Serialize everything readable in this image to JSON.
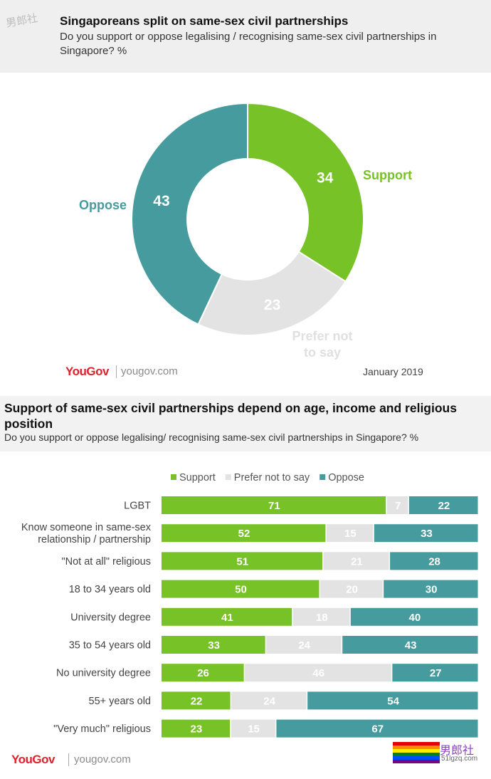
{
  "header1": {
    "watermark": "男郎社",
    "title": "Singaporeans split on same-sex civil partnerships",
    "subtitle": "Do you support or oppose legalising / recognising same-sex civil partnerships in Singapore? %"
  },
  "chart_data": [
    {
      "type": "pie",
      "variant": "donut",
      "slices": [
        {
          "label": "Support",
          "value": 34,
          "color": "#77c226"
        },
        {
          "label": "Prefer not to say",
          "value": 23,
          "color": "#e3e3e3"
        },
        {
          "label": "Oppose",
          "value": 43,
          "color": "#459b9d"
        }
      ],
      "source_brand": "YouGov",
      "source_url": "yougov.com",
      "date": "January 2019"
    },
    {
      "type": "bar",
      "orientation": "horizontal",
      "stacked": true,
      "title": "Support of same-sex civil partnerships depend on age, income and religious position",
      "subtitle": "Do you support or oppose legalising/ recognising same-sex civil partnerships in Singapore? %",
      "legend_position": "top",
      "categories": [
        [
          "LGBT"
        ],
        [
          "Know someone in same-sex",
          "relationship / partnership"
        ],
        [
          "\"Not at all\" religious"
        ],
        [
          "18 to 34 years old"
        ],
        [
          "University degree"
        ],
        [
          "35 to 54 years old"
        ],
        [
          "No university degree"
        ],
        [
          "55+ years old"
        ],
        [
          "\"Very much\" religious"
        ]
      ],
      "series": [
        {
          "name": "Support",
          "color": "#77c226",
          "values": [
            71,
            52,
            51,
            50,
            41,
            33,
            26,
            22,
            23
          ]
        },
        {
          "name": "Prefer not to say",
          "color": "#e3e3e3",
          "values": [
            7,
            15,
            21,
            20,
            18,
            24,
            46,
            24,
            15
          ]
        },
        {
          "name": "Oppose",
          "color": "#459b9d",
          "values": [
            22,
            33,
            28,
            30,
            40,
            43,
            27,
            54,
            67
          ]
        }
      ],
      "source_brand": "YouGov",
      "source_url": "yougov.com"
    }
  ],
  "watermark_bottom": {
    "text": "男郎社",
    "url": "51lgzq.com"
  }
}
